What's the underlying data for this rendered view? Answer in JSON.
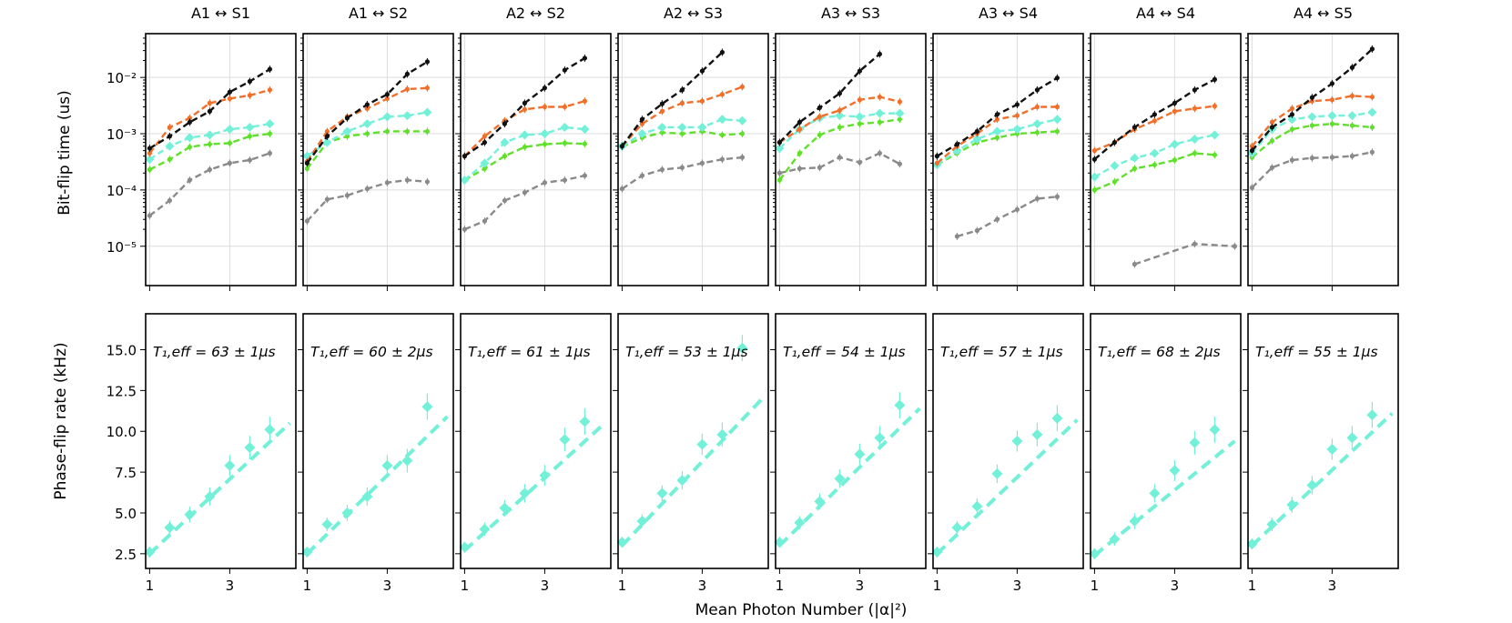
{
  "figure": {
    "x_axis_label": "Mean Photon Number (|α|²)",
    "top_y_label": "Bit-flip time (us)",
    "bottom_y_label": "Phase-flip rate (kHz)",
    "x_tick_labels": [
      "1",
      "3"
    ]
  },
  "panel_titles": [
    "A1 ↔ S1",
    "A1 ↔ S2",
    "A2 ↔ S2",
    "A2 ↔ S3",
    "A3 ↔ S3",
    "A3 ↔ S4",
    "A4 ↔ S4",
    "A4 ↔ S5"
  ],
  "t1_labels": [
    "T₁,eff = 63 ± 1μs",
    "T₁,eff = 60 ± 2μs",
    "T₁,eff = 61 ± 1μs",
    "T₁,eff = 53 ± 1μs",
    "T₁,eff = 54 ± 1μs",
    "T₁,eff = 57 ± 1μs",
    "T₁,eff = 68 ± 2μs",
    "T₁,eff = 55 ± 1μs"
  ],
  "colors": {
    "black": "#111111",
    "orange": "#f26f2a",
    "cyan": "#72f0d8",
    "green": "#5fe02a",
    "gray": "#8a8a8a"
  },
  "chart_data": [
    {
      "type": "line",
      "title": "Bit-flip time vs mean photon number",
      "ylabel": "Bit-flip time (us)",
      "xlabel": "Mean Photon Number (|α|²)",
      "yscale": "log",
      "ylim": [
        2e-06,
        0.06
      ],
      "xlim": [
        0.9,
        4.65
      ],
      "y_tick_labels": [
        "10⁻⁵",
        "10⁻⁴",
        "10⁻³",
        "10⁻²"
      ],
      "y_ticks": [
        1e-05,
        0.0001,
        0.001,
        0.01
      ],
      "x": [
        1,
        1.5,
        2,
        2.5,
        3,
        3.5,
        4,
        4.5
      ],
      "panels": [
        {
          "name": "A1 ↔ S1",
          "series": [
            {
              "name": "black",
              "values": [
                0.00055,
                0.0009,
                0.0016,
                0.0025,
                0.0055,
                0.0085,
                0.014
              ]
            },
            {
              "name": "orange",
              "values": [
                0.00045,
                0.0013,
                0.0019,
                0.0035,
                0.0042,
                0.0048,
                0.006
              ]
            },
            {
              "name": "cyan",
              "values": [
                0.00035,
                0.0006,
                0.00085,
                0.00095,
                0.0012,
                0.0013,
                0.0015
              ]
            },
            {
              "name": "green",
              "values": [
                0.00023,
                0.00035,
                0.00058,
                0.00065,
                0.00068,
                0.0009,
                0.001
              ]
            },
            {
              "name": "gray",
              "values": [
                3.5e-05,
                6.5e-05,
                0.00015,
                0.00023,
                0.0003,
                0.00034,
                0.00045
              ]
            }
          ]
        },
        {
          "name": "A1 ↔ S2",
          "series": [
            {
              "name": "black",
              "values": [
                0.0003,
                0.0009,
                0.0019,
                0.0033,
                0.005,
                0.0115,
                0.019
              ]
            },
            {
              "name": "orange",
              "values": [
                0.00032,
                0.0011,
                0.002,
                0.0028,
                0.0042,
                0.0062,
                0.0065
              ]
            },
            {
              "name": "cyan",
              "values": [
                0.0004,
                0.0007,
                0.0011,
                0.0015,
                0.002,
                0.0021,
                0.0024
              ]
            },
            {
              "name": "green",
              "values": [
                0.00024,
                0.0007,
                0.0009,
                0.001,
                0.0011,
                0.0011,
                0.0011
              ]
            },
            {
              "name": "gray",
              "values": [
                2.8e-05,
                6.8e-05,
                8e-05,
                0.000105,
                0.000135,
                0.00015,
                0.00014
              ]
            }
          ]
        },
        {
          "name": "A2 ↔ S2",
          "series": [
            {
              "name": "black",
              "values": [
                0.0004,
                0.0007,
                0.0015,
                0.0035,
                0.0065,
                0.0135,
                0.022
              ]
            },
            {
              "name": "orange",
              "values": [
                0.0004,
                0.0009,
                0.0017,
                0.0027,
                0.003,
                0.003,
                0.0038
              ]
            },
            {
              "name": "cyan",
              "values": [
                0.00015,
                0.0003,
                0.0007,
                0.00095,
                0.001,
                0.0013,
                0.0012
              ]
            },
            {
              "name": "green",
              "values": [
                0.00015,
                0.00024,
                0.0004,
                0.00058,
                0.00065,
                0.00068,
                0.00066
              ]
            },
            {
              "name": "gray",
              "values": [
                2e-05,
                2.8e-05,
                6.5e-05,
                9e-05,
                0.000135,
                0.00015,
                0.00018
              ]
            }
          ]
        },
        {
          "name": "A2 ↔ S3",
          "series": [
            {
              "name": "black",
              "values": [
                0.0006,
                0.0018,
                0.0034,
                0.006,
                0.013,
                0.028
              ]
            },
            {
              "name": "orange",
              "values": [
                0.0006,
                0.0015,
                0.0025,
                0.0035,
                0.0038,
                0.005,
                0.0068
              ]
            },
            {
              "name": "cyan",
              "values": [
                0.0006,
                0.001,
                0.0013,
                0.0013,
                0.0013,
                0.0018,
                0.0017
              ]
            },
            {
              "name": "green",
              "values": [
                0.00058,
                0.00085,
                0.00105,
                0.001,
                0.0011,
                0.00095,
                0.001
              ]
            },
            {
              "name": "gray",
              "values": [
                0.000105,
                0.00018,
                0.00023,
                0.00025,
                0.0003,
                0.00035,
                0.00038
              ]
            }
          ]
        },
        {
          "name": "A3 ↔ S3",
          "series": [
            {
              "name": "black",
              "values": [
                0.0007,
                0.0016,
                0.0029,
                0.0052,
                0.013,
                0.026
              ]
            },
            {
              "name": "orange",
              "values": [
                0.0007,
                0.0012,
                0.002,
                0.0026,
                0.004,
                0.0045,
                0.0037
              ]
            },
            {
              "name": "cyan",
              "values": [
                0.00055,
                0.0012,
                0.0019,
                0.0021,
                0.002,
                0.0023,
                0.0023
              ]
            },
            {
              "name": "green",
              "values": [
                0.00015,
                0.00045,
                0.00095,
                0.0013,
                0.0015,
                0.0016,
                0.0018
              ]
            },
            {
              "name": "gray",
              "values": [
                0.0002,
                0.00024,
                0.00025,
                0.00038,
                0.00031,
                0.00045,
                0.00029
              ]
            }
          ]
        },
        {
          "name": "A3 ↔ S4",
          "series": [
            {
              "name": "black",
              "values": [
                0.0004,
                0.00065,
                0.0011,
                0.0022,
                0.0033,
                0.006,
                0.0098
              ]
            },
            {
              "name": "orange",
              "values": [
                0.0003,
                0.0006,
                0.001,
                0.0018,
                0.0021,
                0.003,
                0.003
              ]
            },
            {
              "name": "cyan",
              "values": [
                0.00028,
                0.0005,
                0.0008,
                0.0011,
                0.0012,
                0.0015,
                0.0018
              ]
            },
            {
              "name": "green",
              "values": [
                0.00028,
                0.00045,
                0.0007,
                0.00085,
                0.001,
                0.00105,
                0.0011
              ]
            },
            {
              "name": "gray",
              "values": [
                1.5e-05,
                1.9e-05,
                3e-05,
                4.5e-05,
                7e-05,
                7.6e-05
              ],
              "x_start_index": 1
            }
          ]
        },
        {
          "name": "A4 ↔ S4",
          "series": [
            {
              "name": "black",
              "values": [
                0.00035,
                0.0007,
                0.0013,
                0.0022,
                0.0035,
                0.006,
                0.0092
              ]
            },
            {
              "name": "orange",
              "values": [
                0.0005,
                0.0007,
                0.0012,
                0.0017,
                0.0025,
                0.0028,
                0.0031
              ]
            },
            {
              "name": "cyan",
              "values": [
                0.00017,
                0.00027,
                0.00037,
                0.00045,
                0.00065,
                0.0008,
                0.00095
              ]
            },
            {
              "name": "green",
              "values": [
                0.0001,
                0.00014,
                0.00024,
                0.00028,
                0.00034,
                0.00045,
                0.00042
              ]
            },
            {
              "name": "gray",
              "values": [
                4.8e-06,
                1.1e-05,
                1e-05
              ],
              "x_positions": [
                2,
                3.5,
                4.5
              ]
            }
          ]
        },
        {
          "name": "A4 ↔ S5",
          "series": [
            {
              "name": "black",
              "values": [
                0.0005,
                0.0013,
                0.0022,
                0.0044,
                0.0078,
                0.015,
                0.032
              ]
            },
            {
              "name": "orange",
              "values": [
                0.0006,
                0.0016,
                0.0028,
                0.0038,
                0.004,
                0.0047,
                0.0045
              ]
            },
            {
              "name": "cyan",
              "values": [
                0.00045,
                0.0012,
                0.0018,
                0.002,
                0.0021,
                0.0021,
                0.0024
              ]
            },
            {
              "name": "green",
              "values": [
                0.00038,
                0.00075,
                0.0012,
                0.0014,
                0.0015,
                0.0014,
                0.0013
              ]
            },
            {
              "name": "gray",
              "values": [
                0.00011,
                0.00025,
                0.00034,
                0.00037,
                0.00038,
                0.0004,
                0.00047
              ]
            }
          ]
        }
      ]
    },
    {
      "type": "scatter",
      "title": "Phase-flip rate vs mean photon number",
      "ylabel": "Phase-flip rate (kHz)",
      "xlabel": "Mean Photon Number (|α|²)",
      "ylim": [
        1.6,
        17.2
      ],
      "xlim": [
        0.9,
        4.65
      ],
      "y_tick_labels": [
        "2.5",
        "5.0",
        "7.5",
        "10.0",
        "12.5",
        "15.0"
      ],
      "y_ticks": [
        2.5,
        5.0,
        7.5,
        10.0,
        12.5,
        15.0
      ],
      "x": [
        1,
        1.5,
        2,
        2.5,
        3,
        3.5,
        4,
        4.5
      ],
      "panels": [
        {
          "name": "A1 ↔ S1",
          "values": [
            2.6,
            4.1,
            4.9,
            6.0,
            7.9,
            9.0,
            10.1
          ],
          "fit": [
            2.5,
            10.5
          ]
        },
        {
          "name": "A1 ↔ S2",
          "values": [
            2.6,
            4.3,
            5.0,
            6.0,
            7.9,
            8.2,
            11.5
          ],
          "fit": [
            2.5,
            10.9
          ]
        },
        {
          "name": "A2 ↔ S2",
          "values": [
            2.9,
            4.0,
            5.3,
            6.2,
            7.3,
            9.5,
            10.6
          ],
          "fit": [
            2.7,
            10.5
          ]
        },
        {
          "name": "A2 ↔ S3",
          "values": [
            3.2,
            4.5,
            6.2,
            7.0,
            9.2,
            9.8,
            15.1
          ],
          "fit": [
            3.0,
            12.0
          ]
        },
        {
          "name": "A3 ↔ S3",
          "values": [
            3.2,
            4.4,
            5.7,
            7.1,
            8.6,
            9.6,
            11.6
          ],
          "fit": [
            3.0,
            11.4
          ]
        },
        {
          "name": "A3 ↔ S4",
          "values": [
            2.6,
            4.1,
            5.4,
            7.4,
            9.4,
            9.8,
            10.8
          ],
          "fit": [
            2.5,
            10.7
          ]
        },
        {
          "name": "A4 ↔ S4",
          "values": [
            2.5,
            3.4,
            4.5,
            6.2,
            7.6,
            9.3,
            10.1
          ],
          "fit": [
            2.4,
            9.4
          ]
        },
        {
          "name": "A4 ↔ S5",
          "values": [
            3.1,
            4.3,
            5.5,
            6.7,
            8.9,
            9.6,
            11.0
          ],
          "fit": [
            3.0,
            11.1
          ]
        }
      ]
    }
  ]
}
